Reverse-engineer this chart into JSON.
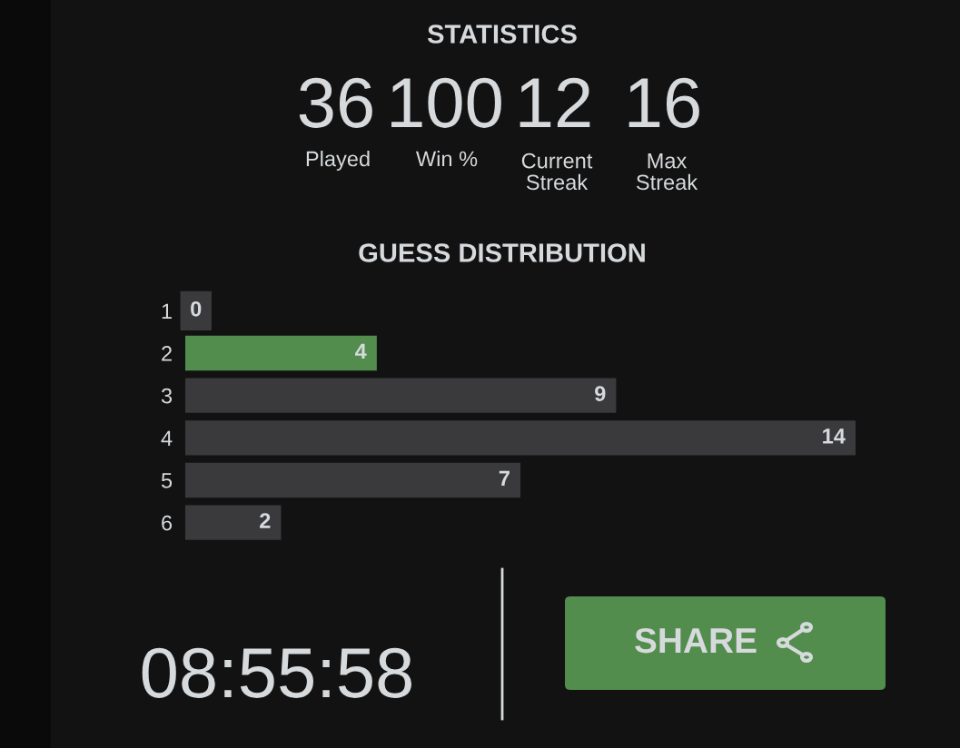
{
  "chart_data": {
    "type": "bar",
    "orientation": "horizontal",
    "title": "STATISTICS",
    "subtitle": "GUESS DISTRIBUTION",
    "categories": [
      "1",
      "2",
      "3",
      "4",
      "5",
      "6"
    ],
    "values": [
      0,
      4,
      9,
      14,
      7,
      2
    ],
    "colors": [
      "#3a3a3c",
      "#538d4e",
      "#3a3a3c",
      "#3a3a3c",
      "#3a3a3c",
      "#3a3a3c"
    ],
    "xlim": [
      0,
      14
    ],
    "data_labels": true,
    "tick_labels": "y",
    "grid": false,
    "legend": false,
    "annotations": [
      "36",
      "Played",
      "100",
      "Win %",
      "12",
      "Current\nStreak",
      "16",
      "Max\nStreak",
      "08:55:58",
      "SHARE"
    ]
  }
}
